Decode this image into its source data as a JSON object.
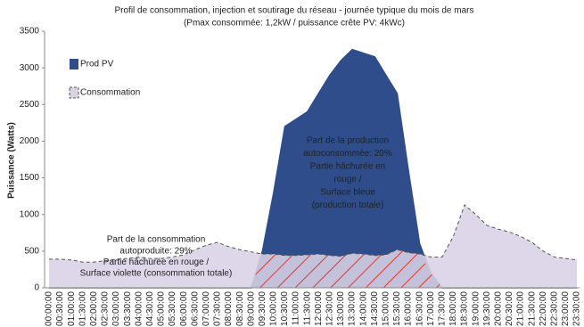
{
  "chart_data": {
    "type": "area",
    "title": [
      "Profil de consommation, injection et soutirage du réseau - journée typique du mois de mars",
      "(Pmax consommée: 1,2kW / puissance crête PV: 4kWc)"
    ],
    "y_label": "Puissance (Watts)",
    "categories": [
      "00:00:00",
      "00:30:00",
      "01:00:00",
      "01:30:00",
      "02:00:00",
      "02:30:00",
      "03:00:00",
      "03:30:00",
      "04:00:00",
      "04:30:00",
      "05:00:00",
      "05:30:00",
      "06:00:00",
      "06:30:00",
      "07:00:00",
      "07:30:00",
      "08:00:00",
      "08:30:00",
      "09:00:00",
      "09:30:00",
      "10:00:00",
      "10:30:00",
      "11:00:00",
      "11:30:00",
      "12:00:00",
      "12:30:00",
      "13:00:00",
      "13:30:00",
      "14:00:00",
      "14:30:00",
      "15:00:00",
      "15:30:00",
      "16:00:00",
      "16:30:00",
      "17:00:00",
      "17:30:00",
      "18:00:00",
      "18:30:00",
      "19:00:00",
      "19:30:00",
      "20:00:00",
      "20:30:00",
      "21:00:00",
      "21:30:00",
      "22:00:00",
      "22:30:00",
      "23:00:00",
      "23:30:00"
    ],
    "series": [
      {
        "name": "Prod PV",
        "color": "#2e4d8a",
        "values": [
          0,
          0,
          0,
          0,
          0,
          0,
          0,
          0,
          0,
          0,
          0,
          0,
          0,
          0,
          0,
          0,
          0,
          0,
          0,
          500,
          1300,
          2200,
          2300,
          2400,
          2650,
          2900,
          3100,
          3250,
          3200,
          3150,
          2900,
          2650,
          1600,
          600,
          200,
          0,
          0,
          0,
          0,
          0,
          0,
          0,
          0,
          0,
          0,
          0,
          0,
          0
        ]
      },
      {
        "name": "Consommation",
        "color": "#d9d2e6",
        "values": [
          390,
          390,
          380,
          350,
          350,
          370,
          390,
          400,
          420,
          400,
          400,
          420,
          450,
          520,
          580,
          620,
          560,
          520,
          490,
          460,
          460,
          440,
          440,
          450,
          460,
          440,
          430,
          470,
          460,
          440,
          450,
          520,
          480,
          460,
          420,
          420,
          700,
          1130,
          1000,
          850,
          800,
          760,
          700,
          620,
          500,
          420,
          400,
          380
        ]
      }
    ],
    "ylim": [
      0,
      3500
    ],
    "yticks": [
      0,
      500,
      1000,
      1500,
      2000,
      2500,
      3000,
      3500
    ],
    "legend": "top-left",
    "annotations": [
      [
        "Part de la production",
        "autoconsommée: 20%",
        "Partie hâchurée en",
        "rouge /",
        "Surface bleue",
        "(production totale)"
      ],
      [
        "Part de la consommation",
        "autoproduite: 29%",
        "Partie hâchurée en rouge /",
        "Surface violette (consommation totale)"
      ]
    ]
  }
}
